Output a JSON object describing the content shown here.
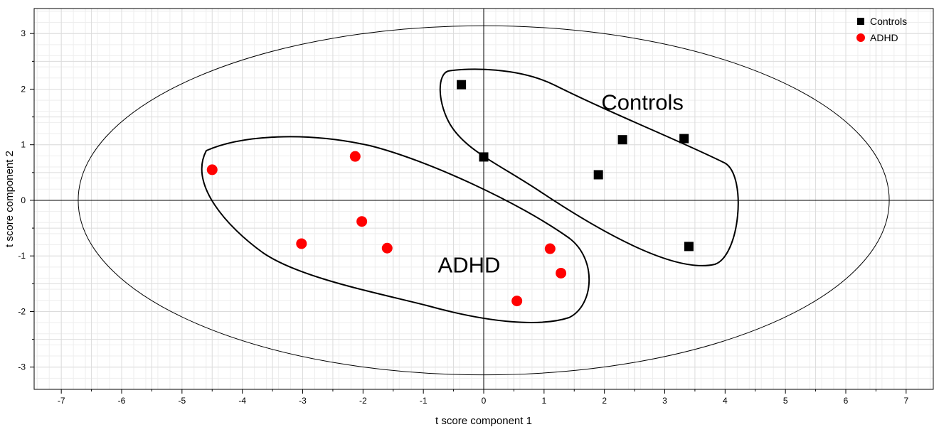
{
  "chart_data": {
    "type": "scatter",
    "xlabel": "t score component 1",
    "ylabel": "t score component 2",
    "xlim": [
      -7.45,
      7.45
    ],
    "ylim": [
      -3.4,
      3.45
    ],
    "xticks": [
      -7,
      -6,
      -5,
      -4,
      -3,
      -2,
      -1,
      0,
      1,
      2,
      3,
      4,
      5,
      6,
      7
    ],
    "yticks": [
      -3,
      -2,
      -1,
      0,
      1,
      2,
      3
    ],
    "grid": true,
    "legend_position": "top-right",
    "series": [
      {
        "name": "Controls",
        "marker": "square",
        "color": "#000000",
        "points": [
          {
            "x": -0.37,
            "y": 2.08
          },
          {
            "x": 0.0,
            "y": 0.78
          },
          {
            "x": 1.9,
            "y": 0.46
          },
          {
            "x": 2.3,
            "y": 1.09
          },
          {
            "x": 3.32,
            "y": 1.11
          },
          {
            "x": 3.4,
            "y": -0.83
          }
        ]
      },
      {
        "name": "ADHD",
        "marker": "circle",
        "color": "#ff0000",
        "points": [
          {
            "x": -4.5,
            "y": 0.55
          },
          {
            "x": -2.13,
            "y": 0.79
          },
          {
            "x": -2.02,
            "y": -0.38
          },
          {
            "x": -3.02,
            "y": -0.78
          },
          {
            "x": -1.6,
            "y": -0.86
          },
          {
            "x": 1.1,
            "y": -0.87
          },
          {
            "x": 1.28,
            "y": -1.31
          },
          {
            "x": 0.55,
            "y": -1.81
          }
        ]
      }
    ],
    "annotations": [
      {
        "text": "Controls",
        "x": 1.95,
        "y": 1.63
      },
      {
        "text": "ADHD",
        "x": -0.76,
        "y": -1.3
      }
    ],
    "confidence_ellipse": {
      "rx": 6.72,
      "ry": 3.14
    }
  }
}
